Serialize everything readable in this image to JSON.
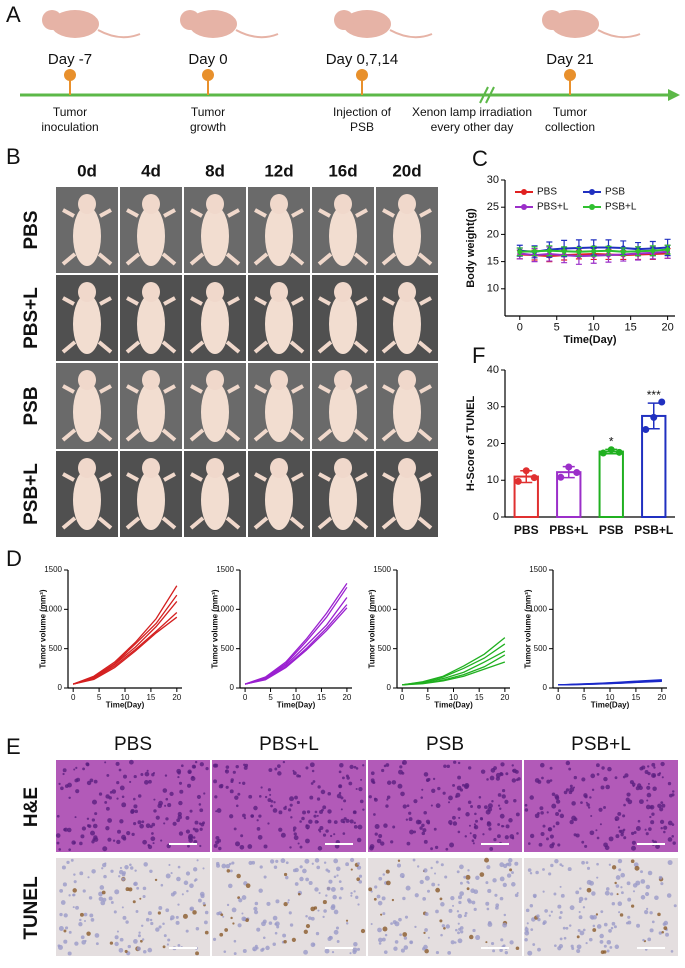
{
  "panel_labels": [
    "A",
    "B",
    "C",
    "D",
    "E",
    "F"
  ],
  "timeline": {
    "events": [
      {
        "day": "Day -7",
        "text": [
          "Tumor",
          "inoculation"
        ]
      },
      {
        "day": "Day 0",
        "text": [
          "Tumor",
          "growth"
        ]
      },
      {
        "day": "Day 0,7,14",
        "text": [
          "Injection of",
          "PSB"
        ]
      },
      {
        "day": "Day 21",
        "text": [
          "Tumor",
          "collection"
        ]
      }
    ],
    "note": [
      "Xenon lamp irradiation",
      "every other day"
    ]
  },
  "photos": {
    "columns": [
      "0d",
      "4d",
      "8d",
      "12d",
      "16d",
      "20d"
    ],
    "rows": [
      "PBS",
      "PBS+L",
      "PSB",
      "PSB+L"
    ]
  },
  "histology": {
    "columns": [
      "PBS",
      "PBS+L",
      "PSB",
      "PSB+L"
    ],
    "rows": [
      "H&E",
      "TUNEL"
    ]
  },
  "chart_data": [
    {
      "type": "line",
      "xlabel": "Time(Day)",
      "ylabel": "Body weight(g)",
      "markers": true,
      "x": [
        0,
        2,
        4,
        6,
        8,
        10,
        12,
        14,
        16,
        18,
        20
      ],
      "xlim": [
        -2,
        21
      ],
      "xticks": [
        0,
        5,
        10,
        15,
        20
      ],
      "ylim": [
        5,
        30
      ],
      "yticks": [
        10,
        15,
        20,
        25,
        30
      ],
      "series": [
        {
          "name": "PBS",
          "color": "#e02020",
          "values": [
            16.3,
            16.2,
            16.0,
            16.2,
            16.3,
            16.4,
            16.3,
            16.2,
            16.3,
            16.4,
            16.5
          ],
          "errors": [
            0.8,
            0.9,
            1.0,
            0.9,
            0.8,
            1.0,
            0.9,
            0.8,
            0.9,
            1.0,
            0.9
          ]
        },
        {
          "name": "PBS+L",
          "color": "#9b2fc9",
          "values": [
            16.5,
            16.2,
            16.4,
            16.2,
            16.0,
            16.1,
            16.2,
            16.3,
            16.5,
            16.6,
            16.8
          ],
          "errors": [
            1.0,
            1.2,
            1.3,
            1.4,
            1.5,
            1.4,
            1.3,
            1.2,
            1.2,
            1.1,
            1.2
          ]
        },
        {
          "name": "PSB",
          "color": "#2030c0",
          "values": [
            17.0,
            16.8,
            17.2,
            17.4,
            17.5,
            17.6,
            17.6,
            17.5,
            17.3,
            17.4,
            17.6
          ],
          "errors": [
            1.0,
            1.1,
            1.4,
            1.5,
            1.5,
            1.4,
            1.4,
            1.3,
            1.2,
            1.3,
            1.5
          ]
        },
        {
          "name": "PSB+L",
          "color": "#30c030",
          "values": [
            16.8,
            16.9,
            17.0,
            16.9,
            16.8,
            16.9,
            17.0,
            16.8,
            16.9,
            17.0,
            17.2
          ],
          "errors": [
            0.7,
            0.8,
            0.9,
            0.8,
            0.8,
            0.9,
            0.8,
            0.7,
            0.8,
            0.9,
            0.8
          ]
        }
      ]
    },
    {
      "type": "bar",
      "ylabel": "H-Score of TUNEL",
      "categories": [
        "PBS",
        "PBS+L",
        "PSB",
        "PSB+L"
      ],
      "colors": [
        "#e03030",
        "#9b2fc9",
        "#20b020",
        "#2030c0"
      ],
      "values": [
        11.0,
        12.2,
        17.8,
        27.5
      ],
      "errors": [
        1.6,
        1.5,
        0.6,
        3.5
      ],
      "points": [
        [
          9.7,
          12.6,
          10.7
        ],
        [
          10.8,
          13.6,
          12.1
        ],
        [
          17.4,
          18.3,
          17.6
        ],
        [
          23.8,
          27.1,
          31.3
        ]
      ],
      "significance": [
        null,
        null,
        "*",
        "***"
      ],
      "ylim": [
        0,
        40
      ],
      "yticks": [
        0,
        10,
        20,
        30,
        40
      ]
    },
    {
      "type": "line",
      "xlabel": "Time(Day)",
      "ylabel": "Tumor volume (mm³)",
      "color": "#d42020",
      "x": [
        0,
        4,
        8,
        12,
        16,
        20
      ],
      "xlim": [
        -1,
        21
      ],
      "xticks": [
        0,
        5,
        10,
        15,
        20
      ],
      "ylim": [
        0,
        1500
      ],
      "yticks": [
        0,
        500,
        1000,
        1500
      ],
      "series": [
        {
          "values": [
            50,
            150,
            330,
            580,
            880,
            1300
          ]
        },
        {
          "values": [
            50,
            140,
            310,
            560,
            820,
            1180
          ]
        },
        {
          "values": [
            50,
            130,
            300,
            520,
            780,
            1100
          ]
        },
        {
          "values": [
            50,
            120,
            280,
            490,
            720,
            960
          ]
        },
        {
          "values": [
            50,
            110,
            260,
            470,
            700,
            900
          ]
        }
      ]
    },
    {
      "type": "line",
      "xlabel": "Time(Day)",
      "ylabel": "Tumor volume (mm³)",
      "color": "#9a20d0",
      "x": [
        0,
        4,
        8,
        12,
        16,
        20
      ],
      "xlim": [
        -1,
        21
      ],
      "xticks": [
        0,
        5,
        10,
        15,
        20
      ],
      "ylim": [
        0,
        1500
      ],
      "yticks": [
        0,
        500,
        1000,
        1500
      ],
      "series": [
        {
          "values": [
            50,
            140,
            330,
            620,
            950,
            1330
          ]
        },
        {
          "values": [
            50,
            130,
            310,
            590,
            900,
            1280
          ]
        },
        {
          "values": [
            50,
            120,
            290,
            540,
            800,
            1150
          ]
        },
        {
          "values": [
            50,
            110,
            270,
            500,
            760,
            1060
          ]
        },
        {
          "values": [
            50,
            105,
            260,
            480,
            730,
            1020
          ]
        }
      ]
    },
    {
      "type": "line",
      "xlabel": "Time(Day)",
      "ylabel": "Tumor volume (mm³)",
      "color": "#20b020",
      "x": [
        0,
        4,
        8,
        12,
        16,
        20
      ],
      "xlim": [
        -1,
        21
      ],
      "xticks": [
        0,
        5,
        10,
        15,
        20
      ],
      "ylim": [
        0,
        1500
      ],
      "yticks": [
        0,
        500,
        1000,
        1500
      ],
      "series": [
        {
          "values": [
            40,
            80,
            150,
            280,
            430,
            640
          ]
        },
        {
          "values": [
            40,
            75,
            140,
            250,
            380,
            560
          ]
        },
        {
          "values": [
            40,
            70,
            120,
            200,
            330,
            470
          ]
        },
        {
          "values": [
            40,
            60,
            100,
            170,
            270,
            420
          ]
        },
        {
          "values": [
            40,
            55,
            90,
            150,
            240,
            330
          ]
        }
      ]
    },
    {
      "type": "line",
      "xlabel": "Time(Day)",
      "ylabel": "Tumor volume (mm³)",
      "color": "#1a28c8",
      "x": [
        0,
        4,
        8,
        12,
        16,
        20
      ],
      "xlim": [
        -1,
        21
      ],
      "xticks": [
        0,
        5,
        10,
        15,
        20
      ],
      "ylim": [
        0,
        1500
      ],
      "yticks": [
        0,
        500,
        1000,
        1500
      ],
      "series": [
        {
          "values": [
            40,
            50,
            60,
            75,
            90,
            105
          ]
        },
        {
          "values": [
            40,
            48,
            58,
            70,
            85,
            100
          ]
        },
        {
          "values": [
            40,
            46,
            55,
            66,
            80,
            95
          ]
        },
        {
          "values": [
            40,
            45,
            53,
            63,
            76,
            90
          ]
        },
        {
          "values": [
            40,
            44,
            51,
            61,
            73,
            85
          ]
        }
      ]
    }
  ]
}
